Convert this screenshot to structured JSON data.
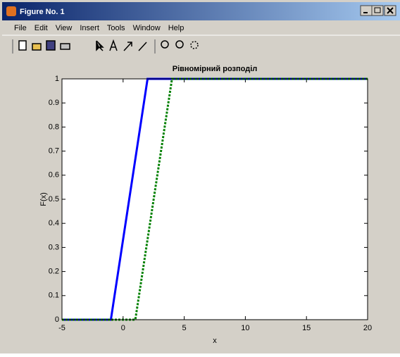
{
  "window": {
    "title": "Figure No. 1",
    "menu": [
      "File",
      "Edit",
      "View",
      "Insert",
      "Tools",
      "Window",
      "Help"
    ]
  },
  "chart_data": {
    "type": "line",
    "title": "Рівномірний розподіл",
    "xlabel": "x",
    "ylabel": "F(x)",
    "xlim": [
      -5,
      20
    ],
    "xticks": [
      -5,
      0,
      5,
      10,
      15,
      20
    ],
    "ylim": [
      0,
      1
    ],
    "yticks": [
      0,
      0.1,
      0.2,
      0.3,
      0.4,
      0.5,
      0.6,
      0.7,
      0.8,
      0.9,
      1
    ],
    "series": [
      {
        "color": "#0000ff",
        "style": "solid",
        "x": [
          -5,
          -1,
          2,
          20
        ],
        "values": [
          0,
          0,
          1,
          1
        ]
      },
      {
        "color": "#008000",
        "style": "dotted",
        "x": [
          -5,
          1,
          4,
          20
        ],
        "values": [
          0,
          0,
          1,
          1
        ]
      }
    ]
  }
}
